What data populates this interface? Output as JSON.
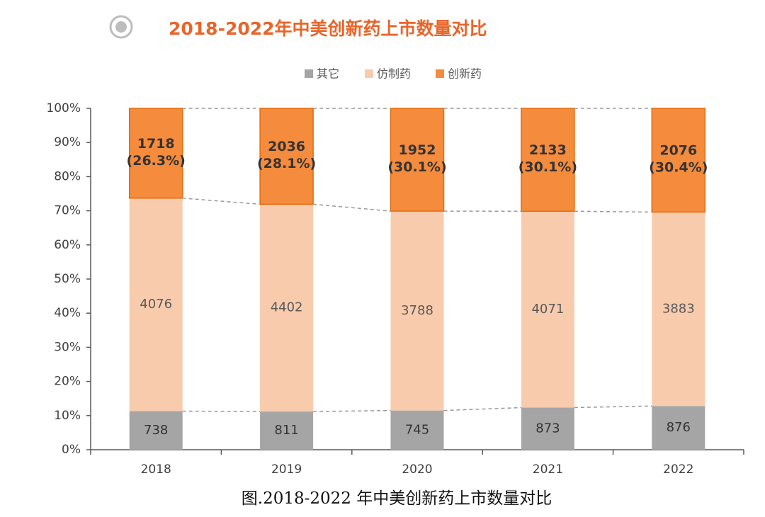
{
  "chart_data": {
    "type": "stacked_bar_percent",
    "title": "2018-2022年中美创新药上市数量对比",
    "caption": "图.2018-2022 年中美创新药上市数量对比",
    "categories": [
      "2018",
      "2019",
      "2020",
      "2021",
      "2022"
    ],
    "series": [
      {
        "name": "其它",
        "color": "#a5a5a5",
        "values": [
          738,
          811,
          745,
          873,
          876
        ]
      },
      {
        "name": "仿制药",
        "color": "#f8cbad",
        "values": [
          4076,
          4402,
          3788,
          4071,
          3883
        ]
      },
      {
        "name": "创新药",
        "color": "#f58b3c",
        "values": [
          1718,
          2036,
          1952,
          2133,
          2076
        ],
        "share_labels": [
          "(26.3%)",
          "(28.1%)",
          "(30.1%)",
          "(30.1%)",
          "(30.4%)"
        ]
      }
    ],
    "ylim": [
      0,
      100
    ],
    "yticks": [
      {
        "value": 0,
        "label": "0%"
      },
      {
        "value": 10,
        "label": "10%"
      },
      {
        "value": 20,
        "label": "20%"
      },
      {
        "value": 30,
        "label": "30%"
      },
      {
        "value": 40,
        "label": "40%"
      },
      {
        "value": 50,
        "label": "50%"
      },
      {
        "value": 60,
        "label": "60%"
      },
      {
        "value": 70,
        "label": "70%"
      },
      {
        "value": 80,
        "label": "80%"
      },
      {
        "value": 90,
        "label": "90%"
      },
      {
        "value": 100,
        "label": "100%"
      }
    ]
  }
}
